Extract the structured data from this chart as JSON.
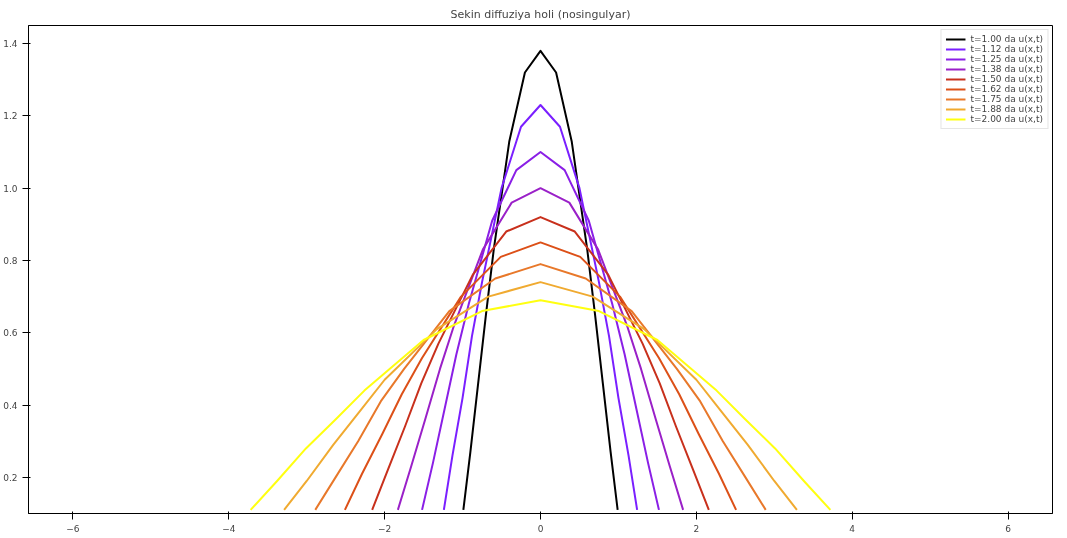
{
  "chart_data": {
    "type": "line",
    "title": "Sekin diffuziya holi (nosingulyar)",
    "xlim": [
      -6.57,
      6.57
    ],
    "ylim": [
      0.1,
      1.45
    ],
    "xticks": [
      -6,
      -4,
      -2,
      0,
      2,
      4,
      6
    ],
    "yticks": [
      0.2,
      0.4,
      0.6,
      0.8,
      {
        "value": 1,
        "label": "1.0"
      },
      1.2,
      1.4
    ],
    "grid": false,
    "legend": "top right",
    "marker": "none",
    "line_style": "solid",
    "series": [
      {
        "name": "t=1.00 da u(x,t)",
        "color": "#000000",
        "x": [
          -0.99,
          -0.9,
          -0.8,
          -0.7,
          -0.6,
          -0.4,
          -0.2,
          0,
          0.2,
          0.4,
          0.6,
          0.7,
          0.8,
          0.9,
          0.99
        ],
        "values": [
          0.11,
          0.27,
          0.46,
          0.65,
          0.83,
          1.13,
          1.32,
          1.38,
          1.32,
          1.13,
          0.83,
          0.65,
          0.46,
          0.27,
          0.11
        ]
      },
      {
        "name": "t=1.12 da u(x,t)",
        "color": "#7a1fff",
        "x": [
          -1.24,
          -1.13,
          -1.0,
          -0.88,
          -0.75,
          -0.5,
          -0.25,
          0,
          0.25,
          0.5,
          0.75,
          0.88,
          1.0,
          1.13,
          1.24
        ],
        "values": [
          0.11,
          0.26,
          0.42,
          0.59,
          0.74,
          1.0,
          1.17,
          1.23,
          1.17,
          1.0,
          0.74,
          0.59,
          0.42,
          0.26,
          0.11
        ]
      },
      {
        "name": "t=1.25 da u(x,t)",
        "color": "#8a1fe6",
        "x": [
          -1.52,
          -1.38,
          -1.23,
          -1.08,
          -0.92,
          -0.62,
          -0.31,
          0,
          0.31,
          0.62,
          0.92,
          1.08,
          1.23,
          1.38,
          1.52
        ],
        "values": [
          0.11,
          0.24,
          0.39,
          0.54,
          0.68,
          0.91,
          1.05,
          1.1,
          1.05,
          0.91,
          0.68,
          0.54,
          0.39,
          0.24,
          0.11
        ]
      },
      {
        "name": "t=1.38 da u(x,t)",
        "color": "#9a20c8",
        "x": [
          -1.83,
          -1.66,
          -1.48,
          -1.29,
          -1.11,
          -0.74,
          -0.37,
          0,
          0.37,
          0.74,
          1.11,
          1.29,
          1.48,
          1.66,
          1.83
        ],
        "values": [
          0.11,
          0.23,
          0.36,
          0.5,
          0.62,
          0.83,
          0.96,
          1.0,
          0.96,
          0.83,
          0.62,
          0.5,
          0.36,
          0.23,
          0.11
        ]
      },
      {
        "name": "t=1.50 da u(x,t)",
        "color": "#c8301c",
        "x": [
          -2.16,
          -1.96,
          -1.74,
          -1.53,
          -1.31,
          -0.87,
          -0.44,
          0,
          0.44,
          0.87,
          1.31,
          1.53,
          1.74,
          1.96,
          2.16
        ],
        "values": [
          0.11,
          0.22,
          0.34,
          0.46,
          0.57,
          0.76,
          0.88,
          0.92,
          0.88,
          0.76,
          0.57,
          0.46,
          0.34,
          0.22,
          0.11
        ]
      },
      {
        "name": "t=1.62 da u(x,t)",
        "color": "#dc5018",
        "x": [
          -2.51,
          -2.29,
          -2.03,
          -1.78,
          -1.52,
          -1.02,
          -0.51,
          0,
          0.51,
          1.02,
          1.52,
          1.78,
          2.03,
          2.29,
          2.51
        ],
        "values": [
          0.11,
          0.21,
          0.32,
          0.43,
          0.53,
          0.7,
          0.81,
          0.85,
          0.81,
          0.7,
          0.53,
          0.43,
          0.32,
          0.21,
          0.11
        ]
      },
      {
        "name": "t=1.75 da u(x,t)",
        "color": "#e8782a",
        "x": [
          -2.89,
          -2.63,
          -2.34,
          -2.05,
          -1.75,
          -1.17,
          -0.58,
          0,
          0.58,
          1.17,
          1.75,
          2.05,
          2.34,
          2.63,
          2.89
        ],
        "values": [
          0.11,
          0.2,
          0.3,
          0.41,
          0.5,
          0.66,
          0.75,
          0.79,
          0.75,
          0.66,
          0.5,
          0.41,
          0.3,
          0.2,
          0.11
        ]
      },
      {
        "name": "t=1.88 da u(x,t)",
        "color": "#f0aa30",
        "x": [
          -3.29,
          -3.0,
          -2.66,
          -2.33,
          -2.0,
          -1.33,
          -0.67,
          0,
          0.67,
          1.33,
          2.0,
          2.33,
          2.66,
          3.0,
          3.29
        ],
        "values": [
          0.11,
          0.19,
          0.29,
          0.38,
          0.47,
          0.61,
          0.7,
          0.74,
          0.7,
          0.61,
          0.47,
          0.38,
          0.29,
          0.19,
          0.11
        ]
      },
      {
        "name": "t=2.00 da u(x,t)",
        "color": "#ffff10",
        "x": [
          -3.72,
          -3.38,
          -3.01,
          -2.63,
          -2.26,
          -1.5,
          -0.75,
          0,
          0.75,
          1.5,
          2.26,
          2.63,
          3.01,
          3.38,
          3.72
        ],
        "values": [
          0.11,
          0.19,
          0.28,
          0.36,
          0.44,
          0.58,
          0.66,
          0.69,
          0.66,
          0.58,
          0.44,
          0.36,
          0.28,
          0.19,
          0.11
        ]
      }
    ]
  }
}
